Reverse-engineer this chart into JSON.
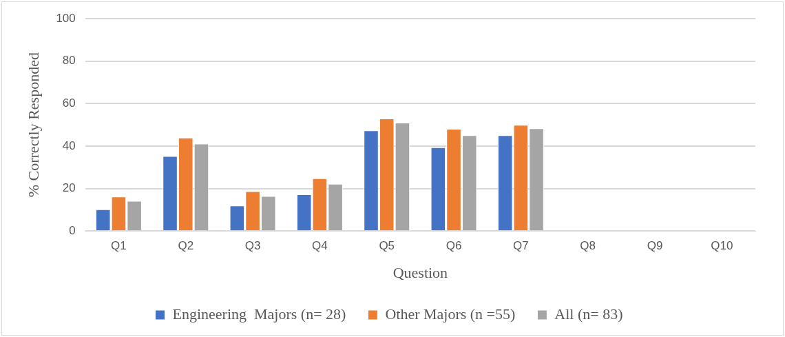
{
  "chart_data": {
    "type": "bar",
    "xlabel": "Question",
    "ylabel": "% Correctly Responded",
    "categories": [
      "Q1",
      "Q2",
      "Q3",
      "Q4",
      "Q5",
      "Q6",
      "Q7",
      "Q8",
      "Q9",
      "Q10"
    ],
    "series": [
      {
        "name": "Engineering  Majors (n= 28)",
        "color": "#4472c4",
        "values": [
          10.2,
          35.3,
          12,
          17.3,
          47.4,
          39.4,
          45.1,
          null,
          null,
          null
        ]
      },
      {
        "name": "Other Majors (n =55)",
        "color": "#ed7d31",
        "values": [
          16.2,
          44,
          18.7,
          24.8,
          53,
          48.1,
          50,
          null,
          null,
          null
        ]
      },
      {
        "name": "All (n= 83)",
        "color": "#a5a5a5",
        "values": [
          14.2,
          41.1,
          16.5,
          22.2,
          51,
          45.1,
          48.4,
          null,
          null,
          null
        ]
      }
    ],
    "ylim": [
      0,
      100
    ],
    "yticks": [
      0,
      20,
      40,
      60,
      80,
      100
    ],
    "grid": "y",
    "legend": "bottom"
  }
}
